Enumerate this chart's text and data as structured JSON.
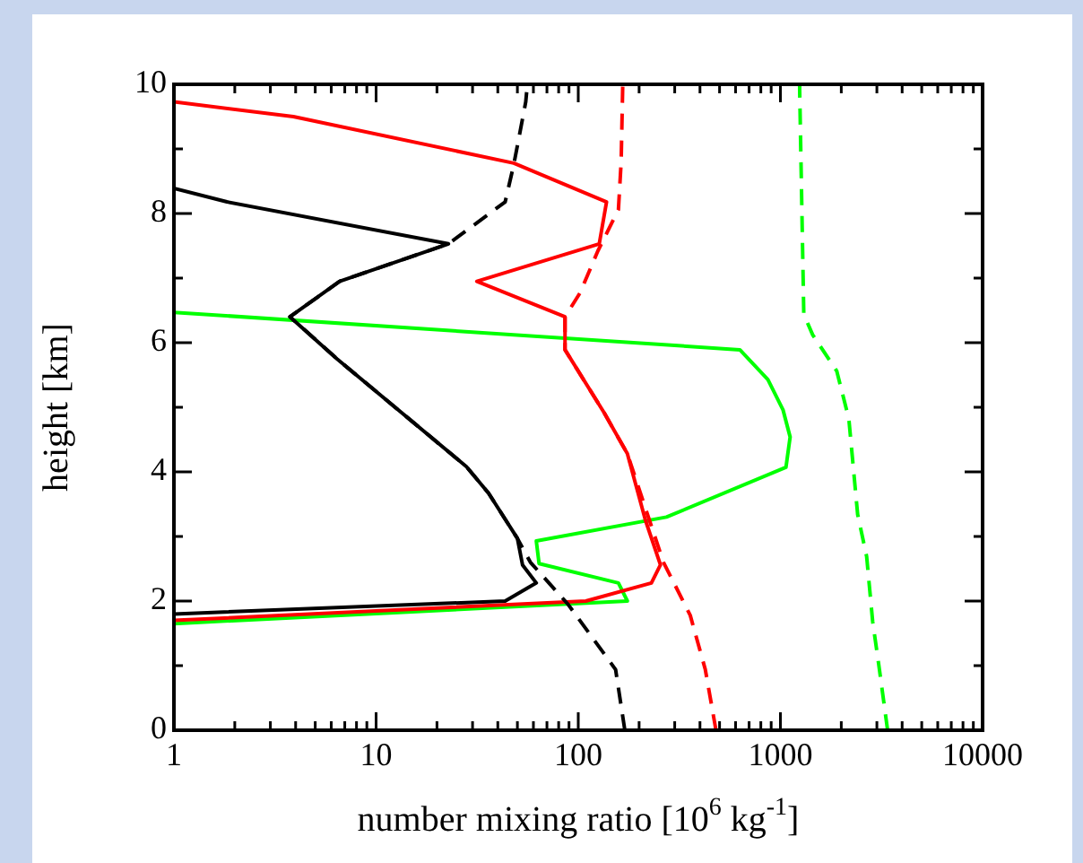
{
  "chart_data": {
    "type": "line",
    "xlabel": "number mixing ratio [10$^{6}$ kg$^{-1}$]",
    "ylabel": "height [km]",
    "log": "x",
    "xlim": [
      1,
      10000
    ],
    "ylim": [
      0,
      10
    ],
    "xticks": [
      1,
      {
        "value": 2,
        "label": null
      },
      {
        "value": 3,
        "label": null
      },
      {
        "value": 4,
        "label": null
      },
      {
        "value": 5,
        "label": null
      },
      {
        "value": 6,
        "label": null
      },
      {
        "value": 7,
        "label": null
      },
      {
        "value": 8,
        "label": null
      },
      {
        "value": 9,
        "label": null
      },
      10,
      {
        "value": 20,
        "label": null
      },
      {
        "value": 30,
        "label": null
      },
      {
        "value": 40,
        "label": null
      },
      {
        "value": 50,
        "label": null
      },
      {
        "value": 60,
        "label": null
      },
      {
        "value": 70,
        "label": null
      },
      {
        "value": 80,
        "label": null
      },
      {
        "value": 90,
        "label": null
      },
      100,
      {
        "value": 200,
        "label": null
      },
      {
        "value": 300,
        "label": null
      },
      {
        "value": 400,
        "label": null
      },
      {
        "value": 500,
        "label": null
      },
      {
        "value": 600,
        "label": null
      },
      {
        "value": 700,
        "label": null
      },
      {
        "value": 800,
        "label": null
      },
      {
        "value": 900,
        "label": null
      },
      1000,
      {
        "value": 2000,
        "label": null
      },
      {
        "value": 3000,
        "label": null
      },
      {
        "value": 4000,
        "label": null
      },
      {
        "value": 5000,
        "label": null
      },
      {
        "value": 6000,
        "label": null
      },
      {
        "value": 7000,
        "label": null
      },
      {
        "value": 8000,
        "label": null
      },
      {
        "value": 9000,
        "label": null
      },
      10000
    ],
    "yticks": [
      0,
      {
        "value": 1,
        "label": null
      },
      2,
      {
        "value": 3,
        "label": null
      },
      4,
      {
        "value": 5,
        "label": null
      },
      6,
      {
        "value": 7,
        "label": null
      },
      8,
      {
        "value": 9,
        "label": null
      },
      10
    ],
    "series": [
      {
        "color": "#000000",
        "line_style": "solid",
        "x": [
          1,
          43.5,
          62,
          53,
          50,
          36,
          28,
          6.4,
          3.75,
          6.6,
          22.8,
          1.83,
          1
        ],
        "values": [
          1.8,
          2.0,
          2.28,
          2.56,
          2.97,
          3.67,
          4.08,
          5.75,
          6.4,
          6.95,
          7.53,
          8.18,
          8.39
        ]
      },
      {
        "color": "#000000",
        "line_style": "dashed",
        "x": [
          170,
          153,
          89,
          58,
          50,
          36,
          28,
          6.4,
          3.75,
          6.6,
          22.8,
          43.5,
          48,
          55,
          56
        ],
        "values": [
          0,
          0.94,
          1.95,
          2.6,
          2.97,
          3.67,
          4.08,
          5.75,
          6.4,
          6.95,
          7.53,
          8.18,
          8.76,
          9.73,
          10
        ]
      },
      {
        "color": "#ff0000",
        "line_style": "solid",
        "x": [
          1,
          109,
          230,
          255,
          215,
          175,
          134,
          86,
          86,
          31.5,
          127,
          138,
          48,
          3.9,
          1
        ],
        "values": [
          1.7,
          2.0,
          2.28,
          2.56,
          3.25,
          4.28,
          4.92,
          5.89,
          6.4,
          6.95,
          7.53,
          8.18,
          8.78,
          9.5,
          9.73
        ]
      },
      {
        "color": "#ff0000",
        "line_style": "dashed",
        "x": [
          480,
          425,
          358,
          264,
          225,
          175,
          134,
          86,
          86,
          102,
          125,
          158,
          163,
          166
        ],
        "values": [
          0,
          0.94,
          1.78,
          2.6,
          3.25,
          4.28,
          4.92,
          5.89,
          6.4,
          6.77,
          7.42,
          8.06,
          8.8,
          10
        ]
      },
      {
        "color": "#00ff00",
        "line_style": "solid",
        "x": [
          1,
          175,
          158,
          64,
          62,
          273,
          1065,
          1117,
          1030,
          867,
          630,
          1
        ],
        "values": [
          1.65,
          2.0,
          2.28,
          2.58,
          2.93,
          3.3,
          4.07,
          4.54,
          4.96,
          5.43,
          5.89,
          6.47
        ]
      },
      {
        "color": "#00ff00",
        "line_style": "dashed",
        "x": [
          3390,
          3060,
          2860,
          2670,
          2410,
          2180,
          1900,
          1445,
          1305,
          1245,
          1245
        ],
        "values": [
          0,
          1.03,
          1.68,
          2.69,
          3.34,
          4.82,
          5.56,
          6.12,
          6.44,
          9.92,
          10
        ]
      }
    ]
  }
}
